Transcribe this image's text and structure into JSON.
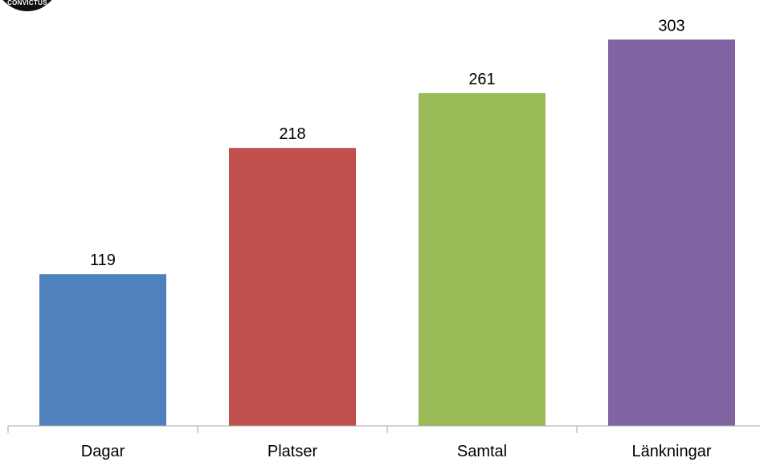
{
  "logo": {
    "text": "CONVICTUS"
  },
  "chart_data": {
    "type": "bar",
    "title": "",
    "xlabel": "",
    "ylabel": "",
    "categories": [
      "Dagar",
      "Platser",
      "Samtal",
      "Länkningar"
    ],
    "values": [
      119,
      218,
      261,
      303
    ],
    "colors": [
      "#4F81BD",
      "#C0504D",
      "#9BBB59",
      "#8064A2"
    ],
    "ylim": [
      0,
      312
    ],
    "grid": false,
    "legend": "none"
  }
}
